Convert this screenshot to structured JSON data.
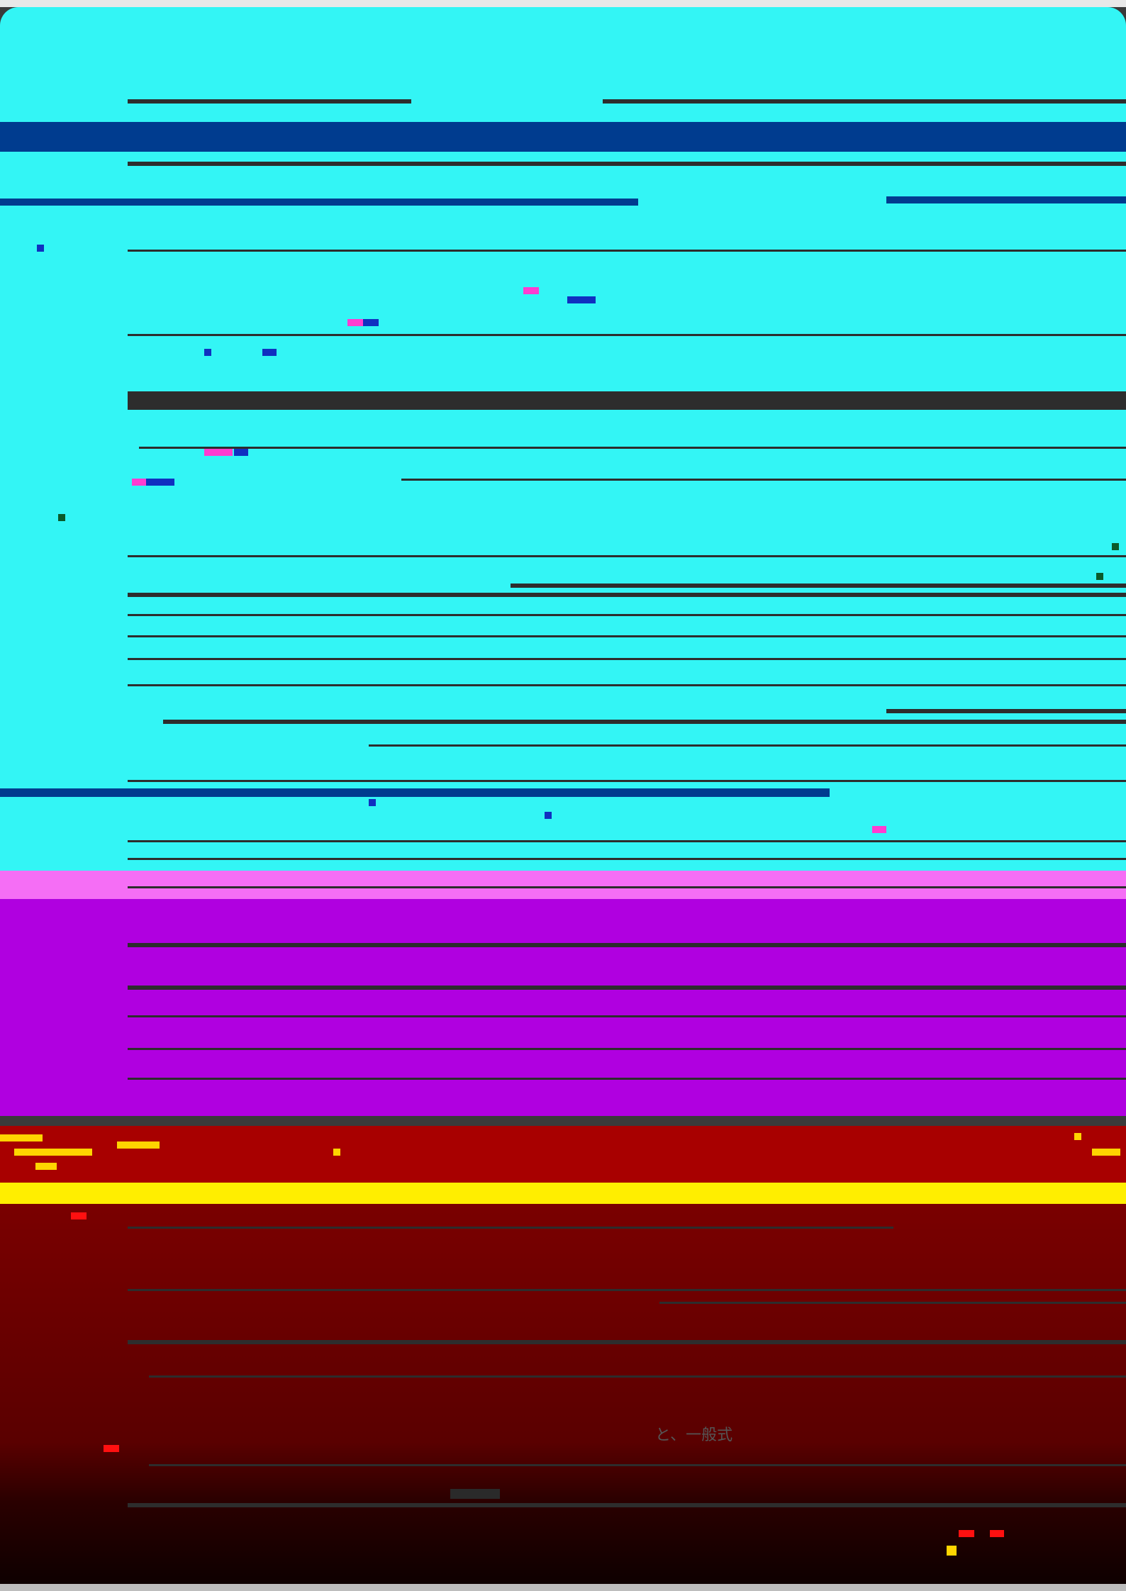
{
  "document": {
    "fragments": [
      {
        "id": "frag-1",
        "text": "と、一般式"
      }
    ]
  },
  "colors": {
    "cyan_band": "#33f5f5",
    "pink_band": "#f56ef5",
    "purple_band": "#b000e0",
    "red_band": "#a80000",
    "yellow_band": "#ffee00",
    "maroon_band": "#7a0000",
    "dark_rule": "#2d2d2d",
    "blue_rule": "#003c8f"
  }
}
